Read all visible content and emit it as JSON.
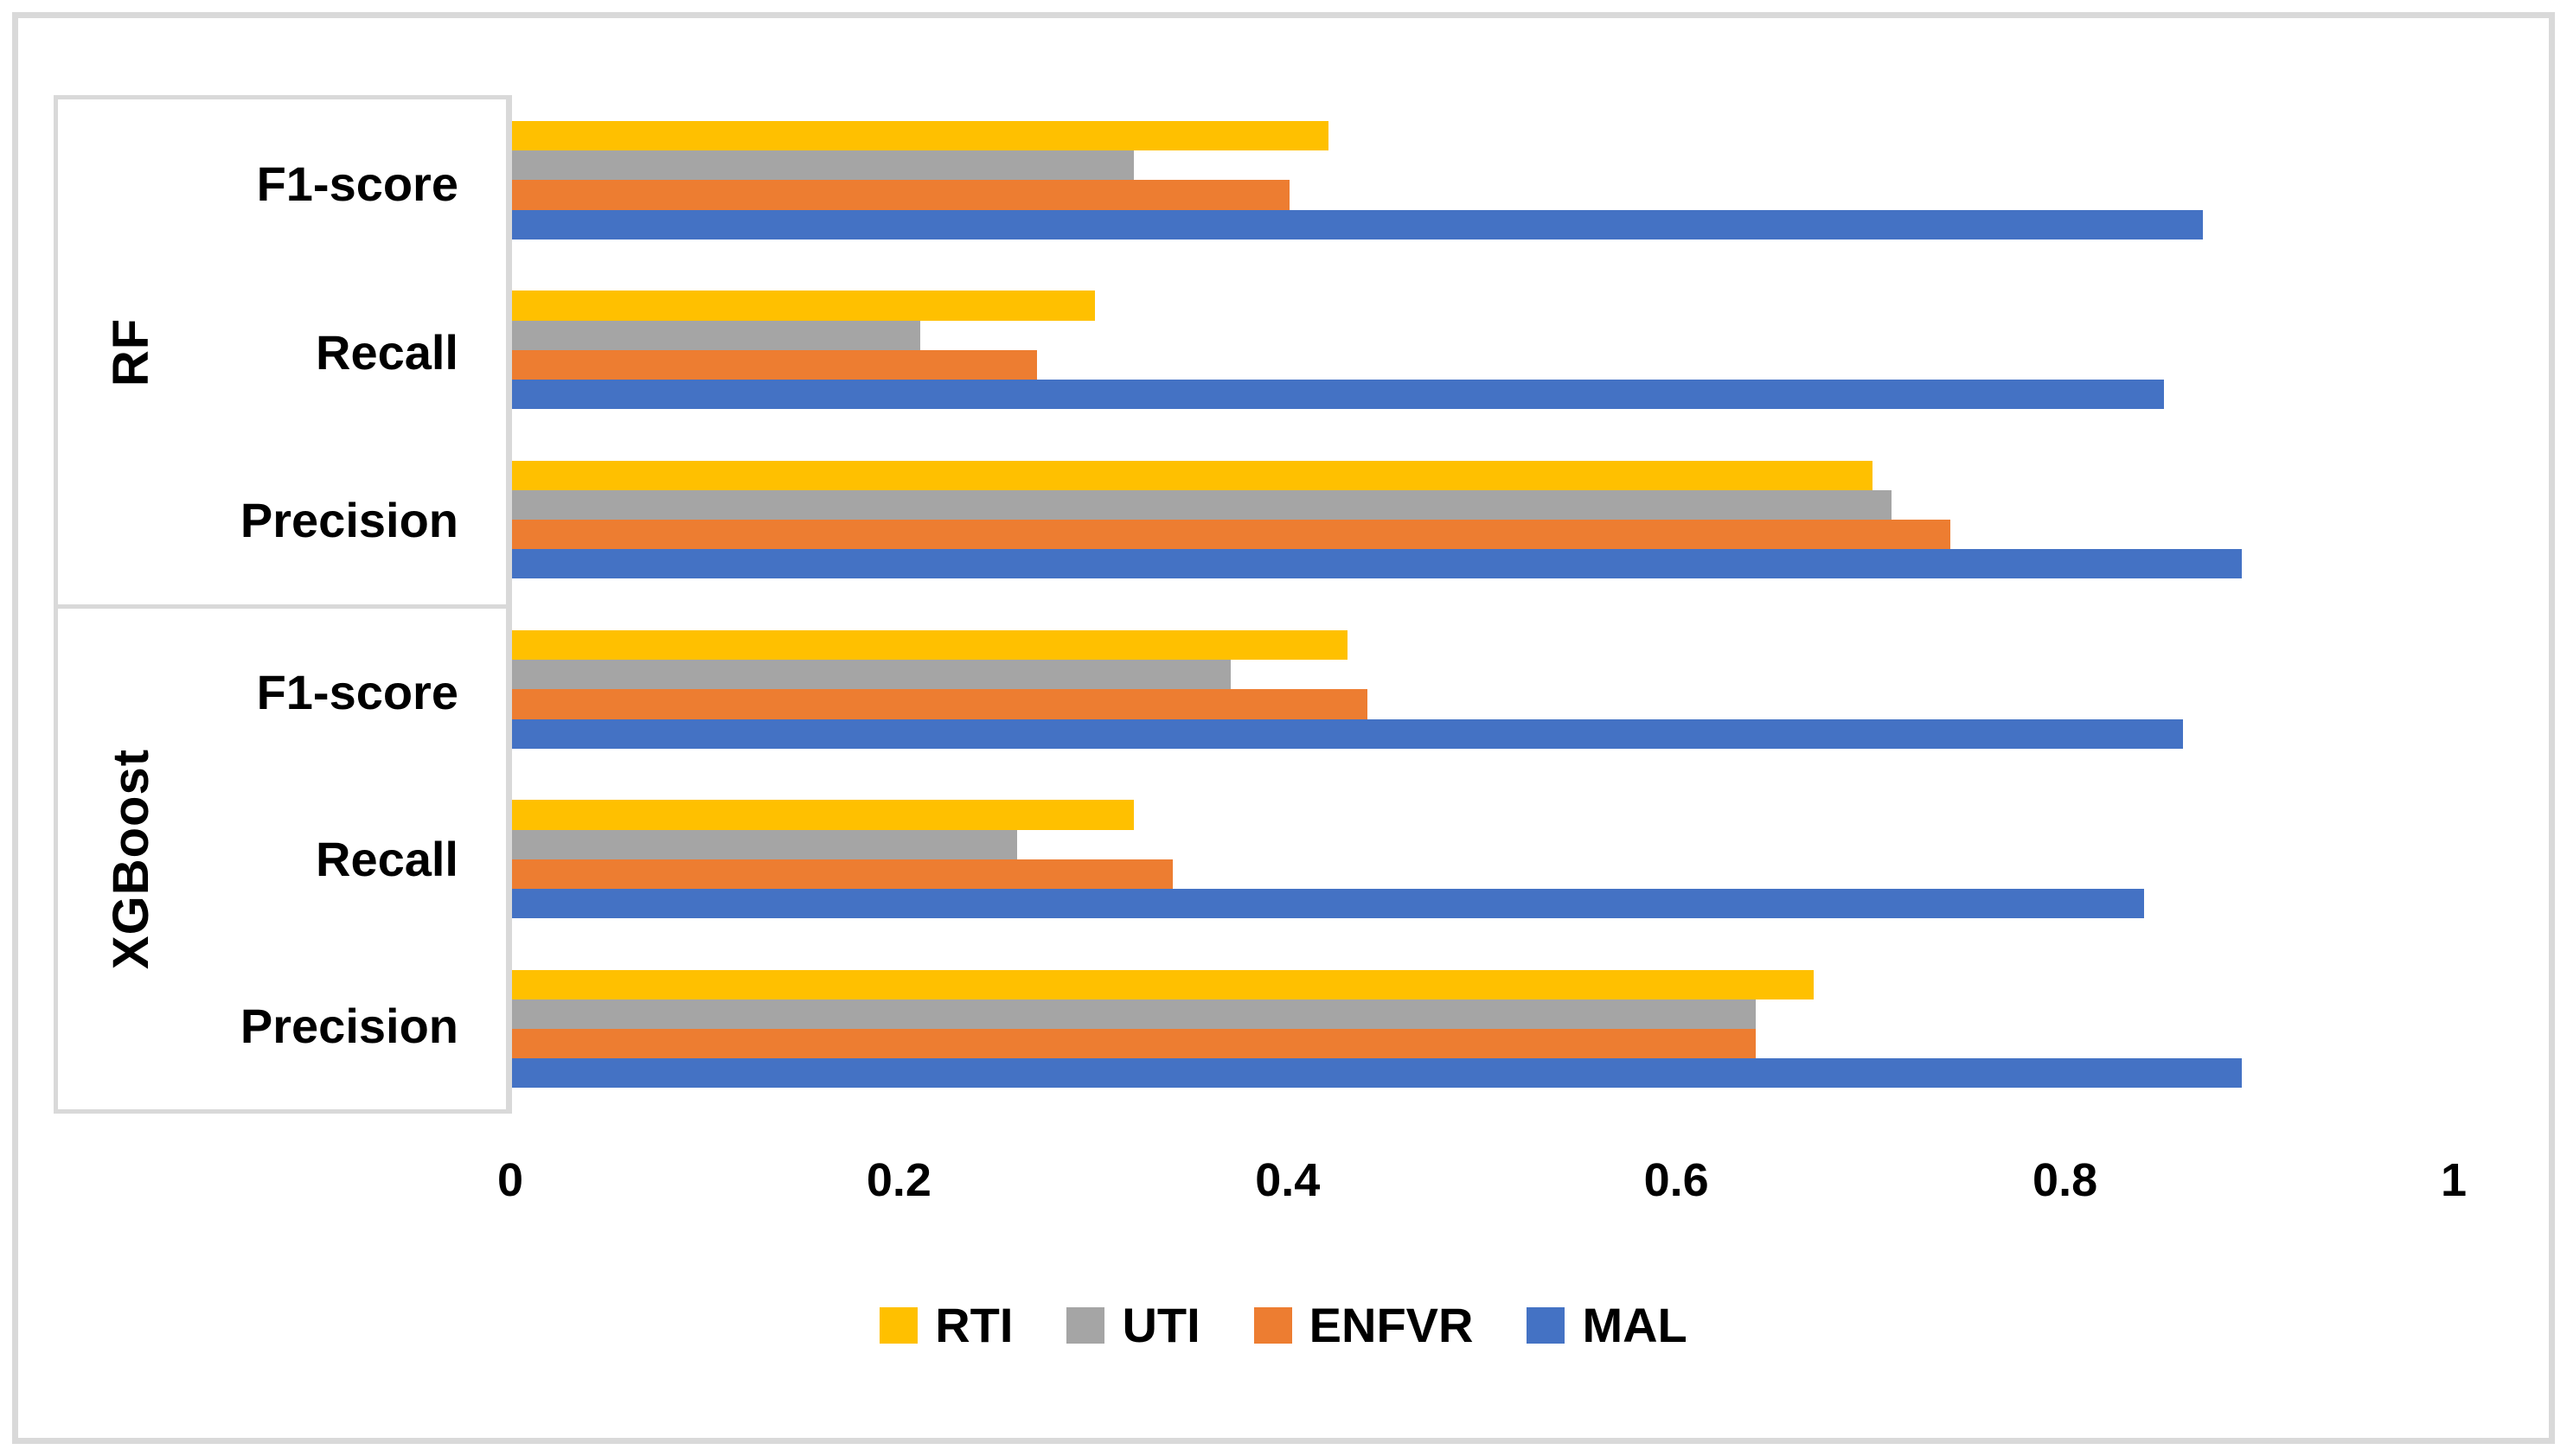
{
  "figure": {
    "background": "#ffffff",
    "frame_color": "#d9d9d9",
    "axis_line_color": "#d9d9d9",
    "text_color": "#000000"
  },
  "chart_data": {
    "type": "bar",
    "orientation": "horizontal",
    "title": "",
    "xlabel": "",
    "ylabel": "",
    "xlim": [
      0,
      1
    ],
    "x_tick_values": [
      0,
      0.2,
      0.4,
      0.6,
      0.8,
      1
    ],
    "x_tick_labels": [
      "0",
      "0.2",
      "0.4",
      "0.6",
      "0.8",
      "1"
    ],
    "grid": false,
    "legend_position": "bottom",
    "groups": [
      {
        "label": "RF",
        "metrics": [
          "F1-score",
          "Recall",
          "Precision"
        ]
      },
      {
        "label": "XGBoost",
        "metrics": [
          "F1-score",
          "Recall",
          "Precision"
        ]
      }
    ],
    "categories": [
      "RF F1-score",
      "RF Recall",
      "RF Precision",
      "XGBoost F1-score",
      "XGBoost Recall",
      "XGBoost Precision"
    ],
    "series": [
      {
        "name": "RTI",
        "color": "#FFC000",
        "values": [
          0.42,
          0.3,
          0.7,
          0.43,
          0.32,
          0.67
        ]
      },
      {
        "name": "UTI",
        "color": "#A5A5A5",
        "values": [
          0.32,
          0.21,
          0.71,
          0.37,
          0.26,
          0.64
        ]
      },
      {
        "name": "ENFVR",
        "color": "#ED7D31",
        "values": [
          0.4,
          0.27,
          0.74,
          0.44,
          0.34,
          0.64
        ]
      },
      {
        "name": "MAL",
        "color": "#4472C4",
        "values": [
          0.87,
          0.85,
          0.89,
          0.86,
          0.84,
          0.89
        ]
      }
    ]
  },
  "legend": {
    "items": [
      {
        "label": "RTI",
        "color": "#FFC000"
      },
      {
        "label": "UTI",
        "color": "#A5A5A5"
      },
      {
        "label": "ENFVR",
        "color": "#ED7D31"
      },
      {
        "label": "MAL",
        "color": "#4472C4"
      }
    ]
  }
}
